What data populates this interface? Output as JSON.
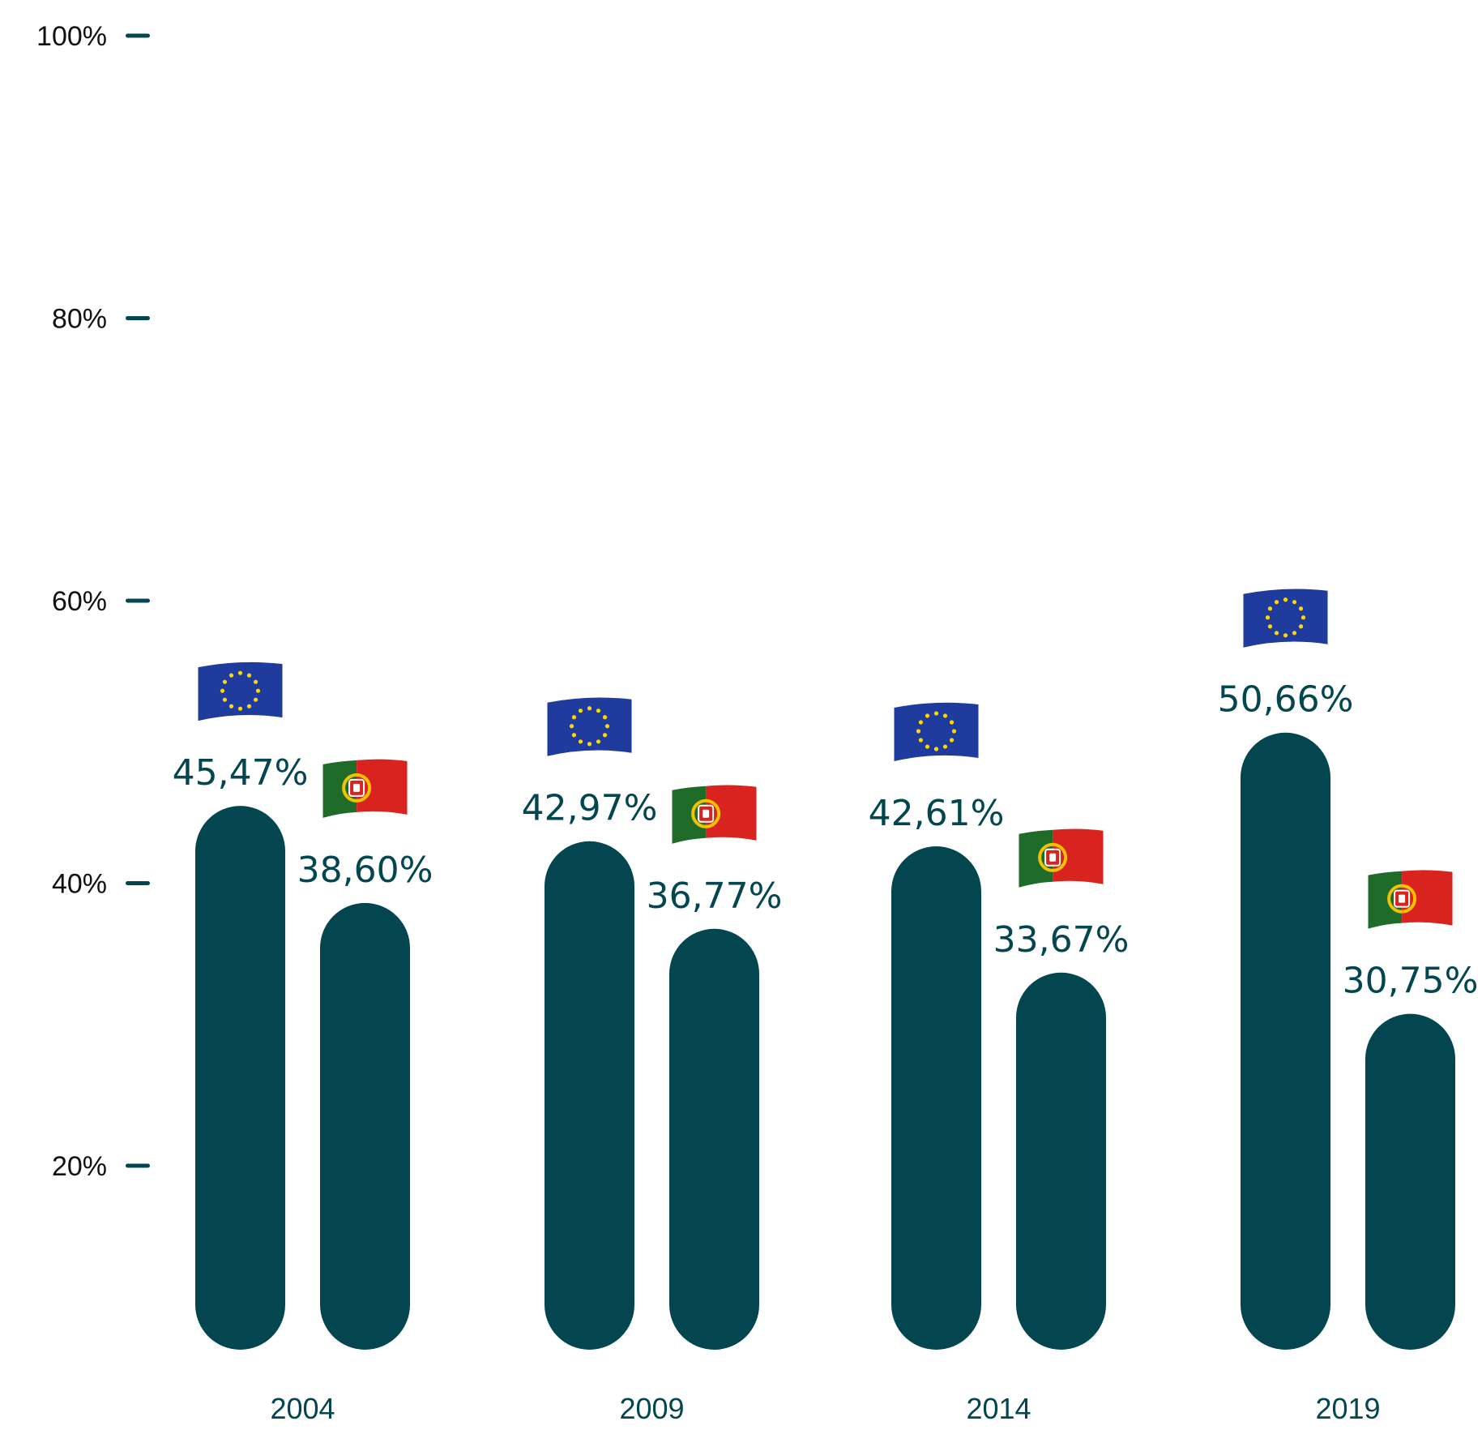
{
  "chart_data": {
    "type": "bar",
    "categories": [
      "2004",
      "2009",
      "2014",
      "2019"
    ],
    "series": [
      {
        "icon": "eu-flag-icon",
        "values": [
          45.47,
          42.97,
          42.61,
          50.66
        ],
        "labels": [
          "45,47%",
          "42,97%",
          "42,61%",
          "50,66%"
        ]
      },
      {
        "icon": "portugal-flag-icon",
        "values": [
          38.6,
          36.77,
          33.67,
          30.75
        ],
        "labels": [
          "38,60%",
          "36,77%",
          "33,67%",
          "30,75%"
        ]
      }
    ],
    "yticks": [
      {
        "value": 20,
        "label": "20%"
      },
      {
        "value": 40,
        "label": "40%"
      },
      {
        "value": 60,
        "label": "60%"
      },
      {
        "value": 80,
        "label": "80%"
      },
      {
        "value": 100,
        "label": "100%"
      }
    ],
    "ylim": [
      0,
      100
    ],
    "grid": false,
    "colors": {
      "bar": "#03464f",
      "tick": "#03464f",
      "eu_blue": "#1f3b9e",
      "eu_star": "#ffd700",
      "pt_green": "#1f6b2a",
      "pt_red": "#d8231e",
      "pt_yellow": "#f2c200"
    }
  }
}
